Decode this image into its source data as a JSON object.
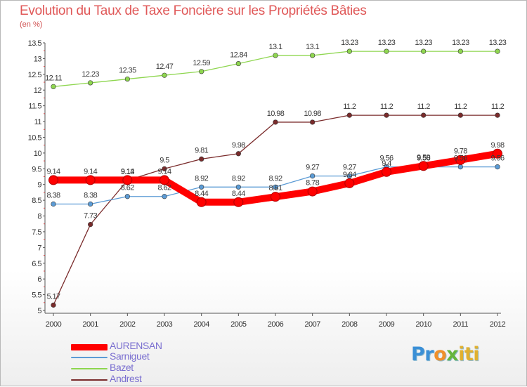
{
  "title": "Evolution du Taux de Taxe Foncière sur les Propriétés Bâties",
  "unit": "(en %)",
  "logo": {
    "text": "Proxiti",
    "parts": [
      "Pr",
      "o",
      "x",
      "iti"
    ]
  },
  "chart_data": {
    "type": "line",
    "title": "Evolution du Taux de Taxe Foncière sur les Propriétés Bâties",
    "ylabel": "(en %)",
    "xlabel": "",
    "x": [
      "2000",
      "2001",
      "2002",
      "2003",
      "2004",
      "2005",
      "2006",
      "2007",
      "2008",
      "2009",
      "2010",
      "2011",
      "2012"
    ],
    "ylim": [
      5,
      13.5
    ],
    "yticks": [
      "5",
      "5.5",
      "6",
      "6.5",
      "7",
      "7.5",
      "8",
      "8.5",
      "9",
      "9.5",
      "10",
      "10.5",
      "11",
      "11.5",
      "12",
      "12.5",
      "13",
      "13.5"
    ],
    "grid": false,
    "legend_position": "bottom-left",
    "series": [
      {
        "name": "AURENSAN",
        "color": "#ff0000",
        "values": [
          9.14,
          9.14,
          9.14,
          9.14,
          8.44,
          8.44,
          8.61,
          8.78,
          9.04,
          9.4,
          9.59,
          9.78,
          9.98
        ],
        "labels": [
          "9.14",
          "9.14",
          "9.14",
          "9.14",
          "8.44",
          "8.44",
          "8.61",
          "8.78",
          "9.04",
          "9.4",
          "9.59",
          "9.78",
          "9.98"
        ]
      },
      {
        "name": "Sarniguet",
        "color": "#5b9bd5",
        "values": [
          8.38,
          8.38,
          8.62,
          8.62,
          8.92,
          8.92,
          8.92,
          9.27,
          9.27,
          9.56,
          9.56,
          9.56,
          9.56
        ],
        "labels": [
          "8.38",
          "8.38",
          "8.62",
          "8.62",
          "8.92",
          "8.92",
          "8.92",
          "9.27",
          "9.27",
          "9.56",
          "9.56",
          "9.56",
          "9.56"
        ]
      },
      {
        "name": "Bazet",
        "color": "#8ed64f",
        "values": [
          12.11,
          12.23,
          12.35,
          12.47,
          12.59,
          12.84,
          13.1,
          13.1,
          13.23,
          13.23,
          13.23,
          13.23,
          13.23
        ],
        "labels": [
          "12.11",
          "12.23",
          "12.35",
          "12.47",
          "12.59",
          "12.84",
          "13.1",
          "13.1",
          "13.23",
          "13.23",
          "13.23",
          "13.23",
          "13.23"
        ]
      },
      {
        "name": "Andrest",
        "color": "#7a2b2b",
        "values": [
          5.17,
          7.73,
          9.13,
          9.5,
          9.81,
          9.98,
          10.98,
          10.98,
          11.2,
          11.2,
          11.2,
          11.2,
          11.2
        ],
        "labels": [
          "5.17",
          "7.73",
          "9.13",
          "9.5",
          "9.81",
          "9.98",
          "10.98",
          "10.98",
          "11.2",
          "11.2",
          "11.2",
          "11.2",
          "11.2"
        ]
      }
    ]
  }
}
